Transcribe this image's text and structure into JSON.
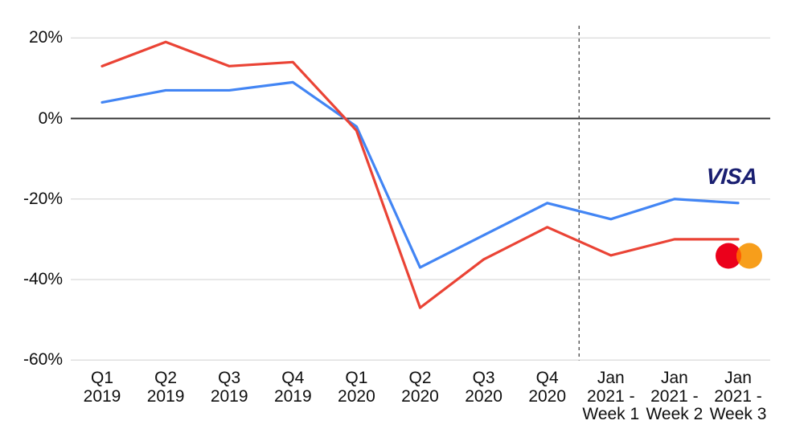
{
  "chart_data": {
    "type": "line",
    "title": "",
    "xlabel": "",
    "ylabel": "",
    "units": "percent",
    "categories": [
      "Q1\n2019",
      "Q2\n2019",
      "Q3\n2019",
      "Q4\n2019",
      "Q1\n2020",
      "Q2\n2020",
      "Q3\n2020",
      "Q4\n2020",
      "Jan\n2021 -\nWeek 1",
      "Jan\n2021 -\nWeek 2",
      "Jan\n2021 -\nWeek 3"
    ],
    "series": [
      {
        "name": "Visa",
        "color": "#4285F4",
        "values": [
          4,
          7,
          7,
          9,
          -2,
          -37,
          -29,
          -21,
          -25,
          -20,
          -21
        ]
      },
      {
        "name": "Mastercard",
        "color": "#EA4335",
        "values": [
          13,
          19,
          13,
          14,
          -3,
          -47,
          -35,
          -27,
          -34,
          -30,
          -30
        ]
      }
    ],
    "yticks": [
      {
        "value": 20,
        "label": "20%"
      },
      {
        "value": 0,
        "label": "0%"
      },
      {
        "value": -20,
        "label": "-20%"
      },
      {
        "value": -40,
        "label": "-40%"
      },
      {
        "value": -60,
        "label": "-60%"
      }
    ],
    "ylim": [
      -60,
      20
    ],
    "grid": "horizontal",
    "zero_baseline": true,
    "divider_after_category": "Q4\n2020",
    "divider_style": "dashed-vertical",
    "legend_position": "logos-right-of-lines"
  },
  "logos": {
    "visa_text": "VISA",
    "visa_color": "#1A1F71",
    "mastercard_red": "#EB001B",
    "mastercard_orange": "#F79E1B",
    "mastercard_overlap": "#FF5F00"
  },
  "colors": {
    "background": "#ffffff",
    "gridline": "#d9d9d9",
    "zero_line": "#333333",
    "divider": "#444444",
    "text": "#0e0e0e"
  }
}
